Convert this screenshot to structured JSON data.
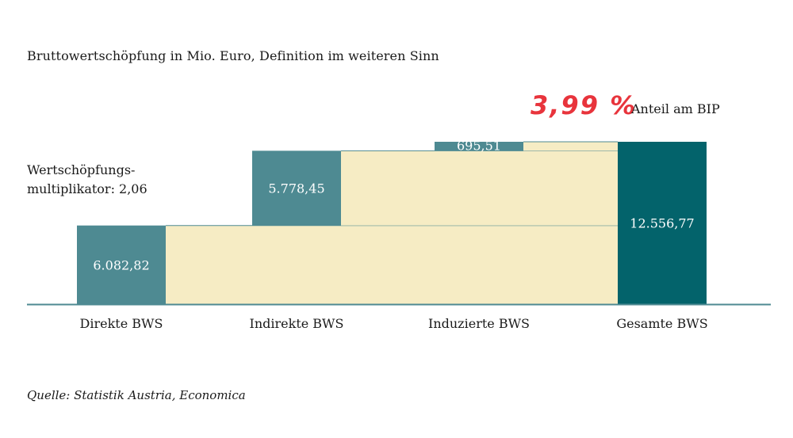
{
  "subtitle": "Bruttowertschöpfung in Mio. Euro, Definition im weiteren Sinn",
  "multiplier": {
    "line1": "Wertschöpfungs-",
    "line2": "multiplikator: 2,06"
  },
  "share": {
    "value": "3,99 %",
    "label": "Anteil am BIP"
  },
  "source": "Quelle: Statistik Austria, Economica",
  "colors": {
    "component_bar": "#4e8a92",
    "total_bar": "#03636b",
    "connector_fill": "#f6ecc4",
    "axis": "#4e8a92",
    "connector_line": "#4e8a92"
  },
  "chart_data": {
    "type": "bar",
    "subtype": "waterfall",
    "categories": [
      "Direkte BWS",
      "Indirekte BWS",
      "Induzierte BWS",
      "Gesamte BWS"
    ],
    "values": [
      6082.82,
      5778.45,
      695.51,
      12556.77
    ],
    "value_labels": [
      "6.082,82",
      "5.778,45",
      "695,51",
      "12.556,77"
    ],
    "is_total": [
      false,
      false,
      false,
      true
    ],
    "ylim": [
      0,
      12556.77
    ],
    "grid": false,
    "legend": "none"
  }
}
